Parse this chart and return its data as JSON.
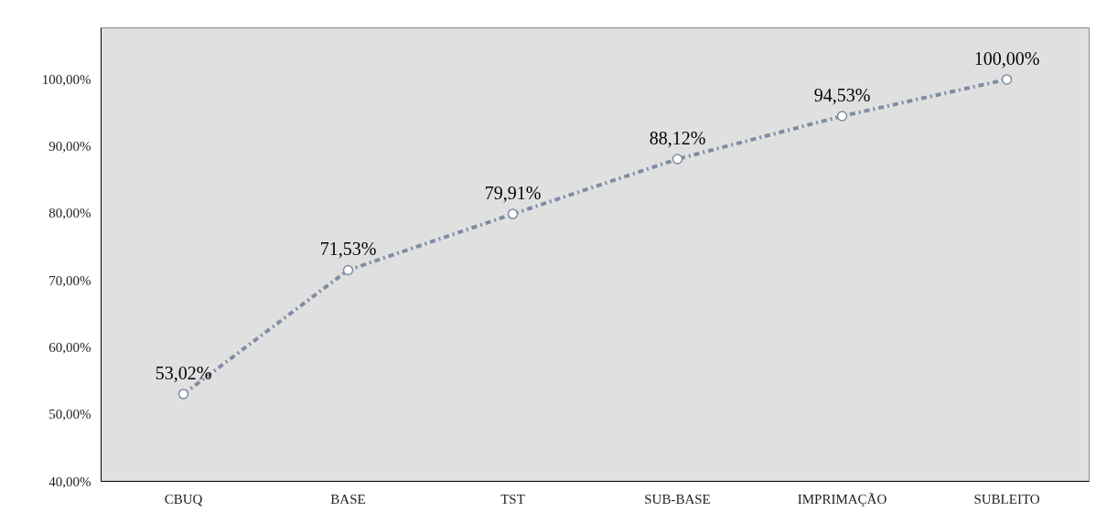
{
  "chart_data": {
    "type": "line",
    "categories": [
      "CBUQ",
      "BASE",
      "TST",
      "SUB-BASE",
      "IMPRIMAÇÃO",
      "SUBLEITO"
    ],
    "series": [
      {
        "color": "#7f8ca3",
        "values": [
          53.02,
          71.53,
          79.91,
          88.12,
          94.53,
          100.0
        ],
        "value_labels": [
          "53,02%",
          "71,53%",
          "79,91%",
          "88,12%",
          "94,53%",
          "100,00%"
        ]
      }
    ],
    "ylim": [
      40,
      107.7
    ],
    "yticks": [
      {
        "value": 40,
        "label": "40,00%"
      },
      {
        "value": 50,
        "label": "50,00%"
      },
      {
        "value": 60,
        "label": "60,00%"
      },
      {
        "value": 70,
        "label": "70,00%"
      },
      {
        "value": 80,
        "label": "80,00%"
      },
      {
        "value": 90,
        "label": "90,00%"
      },
      {
        "value": 100,
        "label": "100,00%"
      }
    ],
    "marker": "circle",
    "line_style": "dashed"
  }
}
